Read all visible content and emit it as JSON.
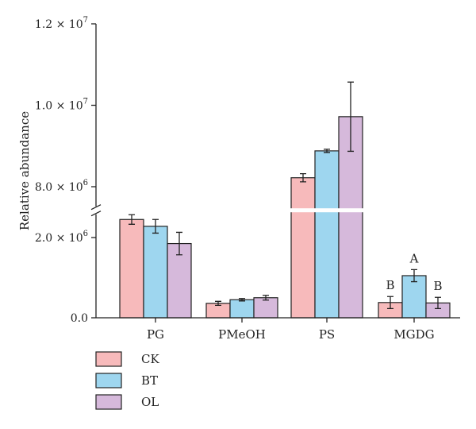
{
  "chart_data": {
    "type": "bar",
    "ylabel": "Relative abundance",
    "xlabel": "",
    "categories": [
      "PG",
      "PMeOH",
      "PS",
      "MGDG"
    ],
    "y_ticks": [
      {
        "value": 0,
        "label": "0.0"
      },
      {
        "value": 2000000,
        "label": "2.0 × 10",
        "exp": "6"
      },
      {
        "value": 8000000,
        "label": "8.0 × 10",
        "exp": "6"
      },
      {
        "value": 10000000,
        "label": "1.0 × 10",
        "exp": "7"
      },
      {
        "value": 12000000,
        "label": "1.2 × 10",
        "exp": "7"
      }
    ],
    "axis_break": {
      "lower_range": [
        0,
        2700000
      ],
      "upper_range": [
        7400000,
        12000000
      ]
    },
    "series": [
      {
        "name": "CK",
        "color": "#f7babb",
        "values": [
          2450000,
          360000,
          8220000,
          380000
        ],
        "errors": [
          120000,
          50000,
          100000,
          150000
        ]
      },
      {
        "name": "BT",
        "color": "#9ed6ef",
        "values": [
          2280000,
          450000,
          8880000,
          1050000
        ],
        "errors": [
          170000,
          30000,
          40000,
          150000
        ]
      },
      {
        "name": "OL",
        "color": "#d6b9db",
        "values": [
          1850000,
          500000,
          9720000,
          370000
        ],
        "errors": [
          280000,
          60000,
          850000,
          140000
        ]
      }
    ],
    "significance": [
      {
        "category": "MGDG",
        "series": "CK",
        "label": "B"
      },
      {
        "category": "MGDG",
        "series": "BT",
        "label": "A"
      },
      {
        "category": "MGDG",
        "series": "OL",
        "label": "B"
      }
    ],
    "legend": {
      "position": "bottom-left"
    }
  }
}
